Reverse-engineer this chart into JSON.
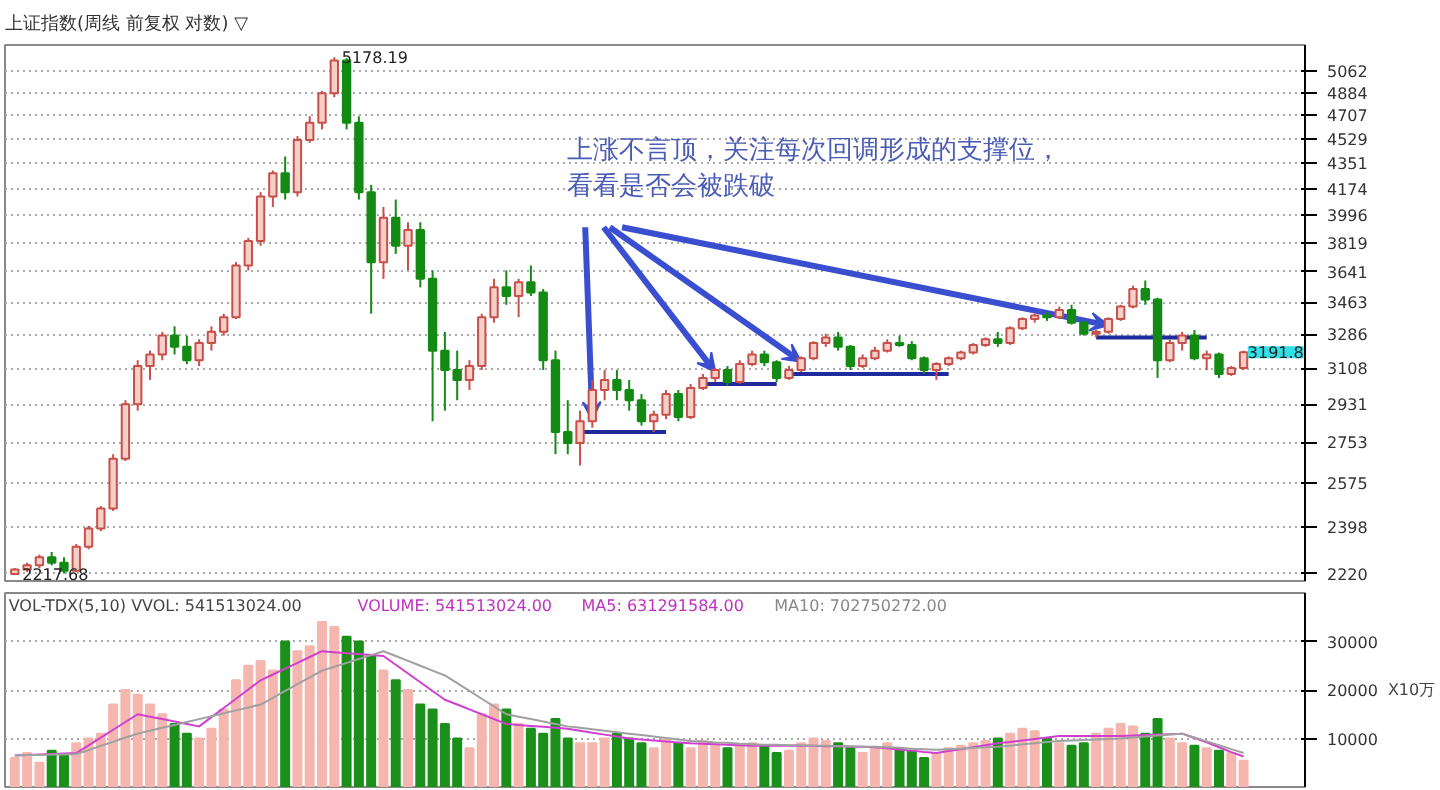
{
  "chart_data": [
    {
      "type": "candlestick",
      "title": "上证指数(周线 前复权 对数) ▽",
      "log": "y",
      "grid": "y",
      "tick_labels": "y",
      "categories": [
        null,
        null,
        null,
        null,
        null,
        null,
        null,
        null,
        null,
        null,
        null,
        null,
        null,
        null,
        null,
        null,
        null,
        null,
        null,
        null,
        null,
        null,
        null,
        null,
        null,
        null,
        null,
        null,
        null,
        null,
        null,
        null,
        null,
        null,
        null,
        null,
        null,
        null,
        null,
        null,
        null,
        null,
        null,
        null,
        null,
        null,
        null,
        null,
        null,
        null,
        null,
        null,
        null,
        null,
        null,
        null,
        null,
        null,
        null,
        null,
        null,
        null,
        null,
        null,
        null,
        null,
        null,
        null,
        null,
        null,
        null,
        null,
        null,
        null,
        null,
        null,
        null,
        null,
        null,
        null,
        null,
        null,
        null,
        null,
        null,
        null,
        null,
        null,
        null,
        null,
        null,
        null,
        null,
        null,
        null,
        null,
        null,
        null,
        null,
        null,
        null
      ],
      "ohlc": [
        [
          2218,
          2240,
          2217.68,
          2235
        ],
        [
          2235,
          2260,
          2225,
          2250
        ],
        [
          2250,
          2290,
          2240,
          2280
        ],
        [
          2280,
          2300,
          2250,
          2260
        ],
        [
          2260,
          2280,
          2220,
          2230
        ],
        [
          2230,
          2330,
          2225,
          2320
        ],
        [
          2320,
          2400,
          2310,
          2390
        ],
        [
          2390,
          2480,
          2380,
          2470
        ],
        [
          2470,
          2700,
          2460,
          2680
        ],
        [
          2680,
          2950,
          2670,
          2930
        ],
        [
          2930,
          3150,
          2900,
          3120
        ],
        [
          3120,
          3200,
          3050,
          3180
        ],
        [
          3180,
          3300,
          3150,
          3280
        ],
        [
          3280,
          3330,
          3180,
          3220
        ],
        [
          3220,
          3280,
          3130,
          3150
        ],
        [
          3150,
          3260,
          3120,
          3240
        ],
        [
          3240,
          3330,
          3200,
          3300
        ],
        [
          3300,
          3400,
          3280,
          3380
        ],
        [
          3380,
          3700,
          3370,
          3680
        ],
        [
          3680,
          3850,
          3650,
          3830
        ],
        [
          3830,
          4150,
          3800,
          4120
        ],
        [
          4120,
          4300,
          4050,
          4280
        ],
        [
          4280,
          4400,
          4100,
          4150
        ],
        [
          4150,
          4550,
          4120,
          4520
        ],
        [
          4520,
          4700,
          4500,
          4650
        ],
        [
          4650,
          4900,
          4600,
          4880
        ],
        [
          4880,
          5178.19,
          4850,
          5150
        ],
        [
          5150,
          5170,
          4600,
          4650
        ],
        [
          4650,
          4700,
          4100,
          4150
        ],
        [
          4150,
          4200,
          3400,
          3700
        ],
        [
          3700,
          4050,
          3600,
          3980
        ],
        [
          3980,
          4100,
          3750,
          3800
        ],
        [
          3800,
          3950,
          3650,
          3900
        ],
        [
          3900,
          3950,
          3550,
          3600
        ],
        [
          3600,
          3650,
          2850,
          3200
        ],
        [
          3200,
          3300,
          2900,
          3100
        ],
        [
          3100,
          3200,
          2950,
          3050
        ],
        [
          3050,
          3150,
          3000,
          3120
        ],
        [
          3120,
          3400,
          3100,
          3380
        ],
        [
          3380,
          3600,
          3350,
          3550
        ],
        [
          3550,
          3650,
          3450,
          3500
        ],
        [
          3500,
          3600,
          3380,
          3580
        ],
        [
          3580,
          3680,
          3500,
          3520
        ],
        [
          3520,
          3540,
          3100,
          3150
        ],
        [
          3150,
          3200,
          2700,
          2800
        ],
        [
          2800,
          2950,
          2700,
          2750
        ],
        [
          2750,
          2900,
          2650,
          2850
        ],
        [
          2850,
          3050,
          2820,
          3000
        ],
        [
          3000,
          3100,
          2950,
          3050
        ],
        [
          3050,
          3100,
          2950,
          3000
        ],
        [
          3000,
          3050,
          2900,
          2950
        ],
        [
          2950,
          2980,
          2830,
          2850
        ],
        [
          2850,
          2900,
          2800,
          2880
        ],
        [
          2880,
          3000,
          2860,
          2980
        ],
        [
          2980,
          3000,
          2850,
          2870
        ],
        [
          2870,
          3030,
          2860,
          3010
        ],
        [
          3010,
          3080,
          3000,
          3060
        ],
        [
          3060,
          3110,
          3040,
          3100
        ],
        [
          3100,
          3120,
          3020,
          3040
        ],
        [
          3040,
          3150,
          3030,
          3130
        ],
        [
          3130,
          3200,
          3120,
          3180
        ],
        [
          3180,
          3200,
          3120,
          3140
        ],
        [
          3140,
          3150,
          3040,
          3060
        ],
        [
          3060,
          3120,
          3050,
          3100
        ],
        [
          3100,
          3170,
          3090,
          3160
        ],
        [
          3160,
          3250,
          3150,
          3240
        ],
        [
          3240,
          3290,
          3220,
          3270
        ],
        [
          3270,
          3300,
          3200,
          3220
        ],
        [
          3220,
          3230,
          3100,
          3120
        ],
        [
          3120,
          3180,
          3110,
          3160
        ],
        [
          3160,
          3220,
          3150,
          3200
        ],
        [
          3200,
          3260,
          3190,
          3240
        ],
        [
          3240,
          3280,
          3220,
          3230
        ],
        [
          3230,
          3250,
          3150,
          3160
        ],
        [
          3160,
          3170,
          3080,
          3100
        ],
        [
          3100,
          3140,
          3050,
          3130
        ],
        [
          3130,
          3170,
          3120,
          3160
        ],
        [
          3160,
          3200,
          3150,
          3190
        ],
        [
          3190,
          3240,
          3180,
          3230
        ],
        [
          3230,
          3270,
          3220,
          3260
        ],
        [
          3260,
          3300,
          3220,
          3240
        ],
        [
          3240,
          3330,
          3230,
          3320
        ],
        [
          3320,
          3380,
          3310,
          3370
        ],
        [
          3370,
          3400,
          3350,
          3390
        ],
        [
          3390,
          3410,
          3360,
          3380
        ],
        [
          3380,
          3440,
          3370,
          3420
        ],
        [
          3420,
          3450,
          3340,
          3350
        ],
        [
          3350,
          3360,
          3280,
          3290
        ],
        [
          3290,
          3310,
          3270,
          3300
        ],
        [
          3300,
          3380,
          3290,
          3370
        ],
        [
          3370,
          3450,
          3360,
          3440
        ],
        [
          3440,
          3560,
          3430,
          3540
        ],
        [
          3540,
          3590,
          3450,
          3480
        ],
        [
          3480,
          3490,
          3060,
          3150
        ],
        [
          3150,
          3260,
          3140,
          3240
        ],
        [
          3240,
          3300,
          3200,
          3280
        ],
        [
          3280,
          3310,
          3150,
          3160
        ],
        [
          3160,
          3200,
          3100,
          3180
        ],
        [
          3180,
          3190,
          3060,
          3080
        ],
        [
          3080,
          3120,
          3070,
          3110
        ],
        [
          3110,
          3200,
          3100,
          3191.8
        ]
      ],
      "series": [
        {
          "type": "line",
          "color": "#1f2a9e",
          "values": [
            null,
            null,
            null,
            null,
            null,
            null,
            null,
            null,
            null,
            null,
            null,
            null,
            null,
            null,
            null,
            null,
            null,
            null,
            null,
            null,
            null,
            null,
            null,
            null,
            null,
            null,
            null,
            null,
            null,
            null,
            null,
            null,
            null,
            null,
            null,
            null,
            null,
            null,
            null,
            null,
            null,
            null,
            null,
            null,
            null,
            null,
            2800,
            2800,
            2800,
            2800,
            2800,
            2800,
            2800,
            2800,
            null,
            null,
            null,
            null,
            null,
            null,
            null,
            null,
            null,
            null,
            null,
            null,
            null,
            null,
            null,
            null,
            null,
            null,
            null,
            null,
            null,
            null,
            null,
            null,
            null,
            null,
            null,
            null,
            null,
            null,
            null,
            null,
            null,
            null,
            null,
            null,
            null,
            null,
            null,
            null,
            null,
            null,
            null,
            null,
            null,
            null,
            null
          ]
        },
        {
          "type": "line",
          "color": "#1f2a9e",
          "values": [
            null,
            null,
            null,
            null,
            null,
            null,
            null,
            null,
            null,
            null,
            null,
            null,
            null,
            null,
            null,
            null,
            null,
            null,
            null,
            null,
            null,
            null,
            null,
            null,
            null,
            null,
            null,
            null,
            null,
            null,
            null,
            null,
            null,
            null,
            null,
            null,
            null,
            null,
            null,
            null,
            null,
            null,
            null,
            null,
            null,
            null,
            null,
            null,
            null,
            null,
            null,
            null,
            null,
            null,
            null,
            null,
            3030,
            3030,
            3030,
            3030,
            3030,
            3030,
            3030,
            null,
            null,
            null,
            null,
            null,
            null,
            null,
            null,
            null,
            null,
            null,
            null,
            null,
            null,
            null,
            null,
            null,
            null,
            null,
            null,
            null,
            null,
            null,
            null,
            null,
            null,
            null,
            null,
            null,
            null,
            null,
            null,
            null,
            null,
            null,
            null,
            null,
            null
          ]
        },
        {
          "type": "line",
          "color": "#1f2a9e",
          "values": [
            null,
            null,
            null,
            null,
            null,
            null,
            null,
            null,
            null,
            null,
            null,
            null,
            null,
            null,
            null,
            null,
            null,
            null,
            null,
            null,
            null,
            null,
            null,
            null,
            null,
            null,
            null,
            null,
            null,
            null,
            null,
            null,
            null,
            null,
            null,
            null,
            null,
            null,
            null,
            null,
            null,
            null,
            null,
            null,
            null,
            null,
            null,
            null,
            null,
            null,
            null,
            null,
            null,
            null,
            null,
            null,
            null,
            null,
            null,
            null,
            null,
            null,
            null,
            3080,
            3080,
            3080,
            3080,
            3080,
            3080,
            3080,
            3080,
            3080,
            3080,
            3080,
            3080,
            3080,
            3080,
            null,
            null,
            null,
            null,
            null,
            null,
            null,
            null,
            null,
            null,
            null,
            null,
            null,
            null,
            null,
            null,
            null,
            null,
            null,
            null,
            null,
            null,
            null,
            null
          ]
        },
        {
          "type": "line",
          "color": "#1f2a9e",
          "values": [
            null,
            null,
            null,
            null,
            null,
            null,
            null,
            null,
            null,
            null,
            null,
            null,
            null,
            null,
            null,
            null,
            null,
            null,
            null,
            null,
            null,
            null,
            null,
            null,
            null,
            null,
            null,
            null,
            null,
            null,
            null,
            null,
            null,
            null,
            null,
            null,
            null,
            null,
            null,
            null,
            null,
            null,
            null,
            null,
            null,
            null,
            null,
            null,
            null,
            null,
            null,
            null,
            null,
            null,
            null,
            null,
            null,
            null,
            null,
            null,
            null,
            null,
            null,
            null,
            null,
            null,
            null,
            null,
            null,
            null,
            null,
            null,
            null,
            null,
            null,
            null,
            null,
            null,
            null,
            null,
            null,
            null,
            null,
            null,
            null,
            null,
            null,
            null,
            3270,
            3270,
            3270,
            3270,
            3270,
            3270,
            3270,
            3270,
            3270,
            3270,
            null,
            null,
            null
          ]
        }
      ],
      "annotations": [
        "上涨不言顶，关注每次回调形成的支撑位，",
        "看看是否会被跌破",
        "5178.19",
        "2217.68",
        "3191.8"
      ],
      "ylim": [
        2193,
        5283
      ],
      "yticks": [
        2220,
        2398,
        2575,
        2753,
        2931,
        3108,
        3286,
        3463,
        3641,
        3819,
        3996,
        4174,
        4351,
        4529,
        4707,
        4884,
        5062
      ]
    },
    {
      "type": "bar",
      "grid": "y",
      "tick_labels": "y",
      "ylabel": "X10万",
      "categories": [
        null,
        null,
        null,
        null,
        null,
        null,
        null,
        null,
        null,
        null,
        null,
        null,
        null,
        null,
        null,
        null,
        null,
        null,
        null,
        null,
        null,
        null,
        null,
        null,
        null,
        null,
        null,
        null,
        null,
        null,
        null,
        null,
        null,
        null,
        null,
        null,
        null,
        null,
        null,
        null,
        null,
        null,
        null,
        null,
        null,
        null,
        null,
        null,
        null,
        null,
        null,
        null,
        null,
        null,
        null,
        null,
        null,
        null,
        null,
        null,
        null,
        null,
        null,
        null,
        null,
        null,
        null,
        null,
        null,
        null,
        null,
        null,
        null,
        null,
        null,
        null,
        null,
        null,
        null,
        null,
        null,
        null,
        null,
        null,
        null,
        null,
        null,
        null,
        null,
        null,
        null,
        null,
        null,
        null,
        null,
        null,
        null,
        null,
        null,
        null,
        null
      ],
      "values": [
        6000,
        7000,
        5000,
        7500,
        6500,
        9000,
        10000,
        11000,
        17000,
        20000,
        19000,
        17000,
        15000,
        13000,
        11000,
        10000,
        12000,
        16000,
        22000,
        25000,
        26000,
        24000,
        30000,
        28000,
        29000,
        34000,
        33000,
        31000,
        30000,
        27000,
        24000,
        22000,
        20000,
        17000,
        16000,
        13000,
        10000,
        8000,
        15000,
        17000,
        16000,
        13000,
        12000,
        11000,
        14000,
        10000,
        9000,
        9000,
        10000,
        11000,
        10000,
        9000,
        8000,
        10000,
        9000,
        8000,
        9500,
        9000,
        8000,
        8500,
        9000,
        8500,
        7000,
        7500,
        9000,
        10000,
        9500,
        9000,
        8000,
        7000,
        8000,
        9000,
        8000,
        7500,
        6000,
        7000,
        8000,
        8500,
        9000,
        9500,
        10000,
        11000,
        12000,
        11500,
        10000,
        9000,
        8500,
        9000,
        11000,
        12000,
        13000,
        12500,
        11000,
        14000,
        10000,
        9000,
        8500,
        8000,
        7500,
        7000,
        5400
      ],
      "colors": [
        "#f4b6ae",
        "#f4b6ae",
        "#f4b6ae",
        "#1a8f1a",
        "#1a8f1a",
        "#f4b6ae",
        "#f4b6ae",
        "#f4b6ae",
        "#f4b6ae",
        "#f4b6ae",
        "#f4b6ae",
        "#f4b6ae",
        "#f4b6ae",
        "#1a8f1a",
        "#1a8f1a",
        "#f4b6ae",
        "#f4b6ae",
        "#f4b6ae",
        "#f4b6ae",
        "#f4b6ae",
        "#f4b6ae",
        "#f4b6ae",
        "#1a8f1a",
        "#f4b6ae",
        "#f4b6ae",
        "#f4b6ae",
        "#f4b6ae",
        "#1a8f1a",
        "#1a8f1a",
        "#1a8f1a",
        "#f4b6ae",
        "#1a8f1a",
        "#f4b6ae",
        "#1a8f1a",
        "#1a8f1a",
        "#1a8f1a",
        "#1a8f1a",
        "#f4b6ae",
        "#f4b6ae",
        "#f4b6ae",
        "#1a8f1a",
        "#f4b6ae",
        "#1a8f1a",
        "#1a8f1a",
        "#1a8f1a",
        "#1a8f1a",
        "#f4b6ae",
        "#f4b6ae",
        "#f4b6ae",
        "#1a8f1a",
        "#1a8f1a",
        "#1a8f1a",
        "#f4b6ae",
        "#f4b6ae",
        "#1a8f1a",
        "#f4b6ae",
        "#f4b6ae",
        "#f4b6ae",
        "#1a8f1a",
        "#f4b6ae",
        "#f4b6ae",
        "#1a8f1a",
        "#1a8f1a",
        "#f4b6ae",
        "#f4b6ae",
        "#f4b6ae",
        "#f4b6ae",
        "#1a8f1a",
        "#1a8f1a",
        "#f4b6ae",
        "#f4b6ae",
        "#f4b6ae",
        "#1a8f1a",
        "#1a8f1a",
        "#1a8f1a",
        "#f4b6ae",
        "#f4b6ae",
        "#f4b6ae",
        "#f4b6ae",
        "#f4b6ae",
        "#1a8f1a",
        "#f4b6ae",
        "#f4b6ae",
        "#f4b6ae",
        "#1a8f1a",
        "#f4b6ae",
        "#1a8f1a",
        "#1a8f1a",
        "#f4b6ae",
        "#f4b6ae",
        "#f4b6ae",
        "#f4b6ae",
        "#1a8f1a",
        "#1a8f1a",
        "#f4b6ae",
        "#f4b6ae",
        "#1a8f1a",
        "#f4b6ae",
        "#1a8f1a",
        "#f4b6ae",
        "#f4b6ae"
      ],
      "series": [
        {
          "type": "line",
          "color": "#d040d0",
          "values": [
            6500,
            6600,
            6700,
            6800,
            6900,
            7000,
            8600,
            10200,
            11800,
            13400,
            15000,
            14500,
            14000,
            13500,
            13000,
            12500,
            14400,
            16300,
            18200,
            20100,
            22000,
            23200,
            24400,
            25600,
            26800,
            28000,
            27800,
            27600,
            27400,
            27200,
            27000,
            25200,
            23400,
            21600,
            19800,
            18000,
            17000,
            16000,
            15000,
            14000,
            13000,
            12800,
            12600,
            12400,
            12200,
            12000,
            11600,
            11200,
            10800,
            10400,
            10000,
            9800,
            9600,
            9400,
            9200,
            9000,
            8900,
            8800,
            8700,
            8600,
            8500,
            8500,
            8500,
            8500,
            8500,
            8500,
            8400,
            8400,
            8300,
            8300,
            8200,
            8000,
            7700,
            7500,
            7200,
            7000,
            7400,
            7800,
            8200,
            8600,
            9000,
            9300,
            9600,
            9900,
            10200,
            10500,
            10500,
            10500,
            10500,
            10500,
            10500,
            10600,
            10700,
            10800,
            10900,
            11000,
            10100,
            9200,
            8200,
            7200,
            6300
          ]
        },
        {
          "type": "line",
          "color": "#a0a0a0",
          "values": [
            6500,
            6600,
            6600,
            6700,
            6700,
            6800,
            7600,
            8500,
            9300,
            10200,
            11000,
            11600,
            12200,
            12800,
            13400,
            14000,
            14600,
            15200,
            15800,
            16400,
            17000,
            18400,
            19800,
            21200,
            22600,
            24000,
            24800,
            25600,
            26400,
            27200,
            28000,
            27000,
            26000,
            25000,
            24000,
            23000,
            21400,
            19800,
            18200,
            16600,
            15000,
            14500,
            14000,
            13500,
            13000,
            12500,
            12200,
            11900,
            11600,
            11300,
            11000,
            10700,
            10400,
            10100,
            9800,
            9500,
            9400,
            9200,
            9100,
            8900,
            8800,
            8700,
            8700,
            8600,
            8600,
            8500,
            8500,
            8400,
            8400,
            8300,
            8300,
            8200,
            8100,
            7900,
            7800,
            7700,
            7800,
            7900,
            8100,
            8200,
            8300,
            8500,
            8800,
            9000,
            9300,
            9500,
            9600,
            9700,
            9800,
            9900,
            10000,
            10200,
            10400,
            10600,
            10800,
            11000,
            10200,
            9400,
            8600,
            7800,
            7000
          ]
        }
      ],
      "annotations": [
        "VOL-TDX(5,10) VVOL: 541513024.00",
        "VOLUME: 541513024.00",
        "MA5: 631291584.00",
        "MA10: 702750272.00"
      ],
      "ylim": [
        0,
        40000
      ],
      "yticks": [
        10000,
        20000,
        30000
      ]
    }
  ]
}
